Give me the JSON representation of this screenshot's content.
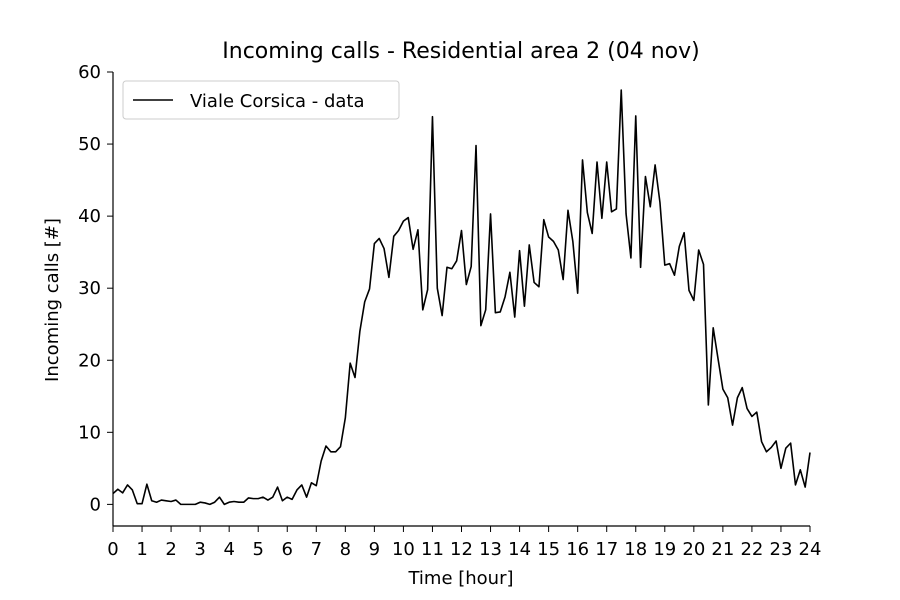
{
  "chart_data": {
    "type": "line",
    "title": "Incoming calls - Residential area 2 (04 nov)",
    "xlabel": "Time [hour]",
    "ylabel": "Incoming calls [#]",
    "xlim": [
      0,
      24
    ],
    "ylim": [
      -3,
      60
    ],
    "xticks": [
      "0",
      "1",
      "2",
      "3",
      "4",
      "5",
      "6",
      "7",
      "8",
      "9",
      "10",
      "11",
      "12",
      "13",
      "14",
      "15",
      "16",
      "17",
      "18",
      "19",
      "20",
      "21",
      "22",
      "23",
      "24"
    ],
    "yticks": [
      "0",
      "10",
      "20",
      "30",
      "40",
      "50",
      "60"
    ],
    "grid": false,
    "legend": {
      "position": "top-left",
      "entries": [
        "Viale Corsica - data"
      ]
    },
    "series": [
      {
        "name": "Viale Corsica - data",
        "color": "#000000",
        "x": [
          0,
          0.1667,
          0.3333,
          0.5,
          0.6667,
          0.8333,
          1,
          1.1667,
          1.3333,
          1.5,
          1.6667,
          1.8333,
          2,
          2.1667,
          2.3333,
          2.5,
          2.6667,
          2.8333,
          3,
          3.1667,
          3.3333,
          3.5,
          3.6667,
          3.8333,
          4,
          4.1667,
          4.3333,
          4.5,
          4.6667,
          4.8333,
          5,
          5.1667,
          5.3333,
          5.5,
          5.6667,
          5.8333,
          6,
          6.1667,
          6.3333,
          6.5,
          6.6667,
          6.8333,
          7,
          7.1667,
          7.3333,
          7.5,
          7.6667,
          7.8333,
          8,
          8.1667,
          8.3333,
          8.5,
          8.6667,
          8.8333,
          9,
          9.1667,
          9.3333,
          9.5,
          9.6667,
          9.8333,
          10,
          10.1667,
          10.3333,
          10.5,
          10.6667,
          10.8333,
          11,
          11.1667,
          11.3333,
          11.5,
          11.6667,
          11.8333,
          12,
          12.1667,
          12.3333,
          12.5,
          12.6667,
          12.8333,
          13,
          13.1667,
          13.3333,
          13.5,
          13.6667,
          13.8333,
          14,
          14.1667,
          14.3333,
          14.5,
          14.6667,
          14.8333,
          15,
          15.1667,
          15.3333,
          15.5,
          15.6667,
          15.8333,
          16,
          16.1667,
          16.3333,
          16.5,
          16.6667,
          16.8333,
          17,
          17.1667,
          17.3333,
          17.5,
          17.6667,
          17.8333,
          18,
          18.1667,
          18.3333,
          18.5,
          18.6667,
          18.8333,
          19,
          19.1667,
          19.3333,
          19.5,
          19.6667,
          19.8333,
          20,
          20.1667,
          20.3333,
          20.5,
          20.6667,
          20.8333,
          21,
          21.1667,
          21.3333,
          21.5,
          21.6667,
          21.8333,
          22,
          22.1667,
          22.3333,
          22.5,
          22.6667,
          22.8333,
          23,
          23.1667,
          23.3333,
          23.5,
          23.6667,
          23.8333,
          24
        ],
        "values": [
          1.5,
          2.1,
          1.6,
          2.7,
          2.0,
          0.1,
          0.1,
          2.8,
          0.5,
          0.3,
          0.6,
          0.5,
          0.4,
          0.6,
          0.0,
          0.0,
          0.0,
          0.0,
          0.3,
          0.2,
          0.0,
          0.3,
          1.0,
          0.0,
          0.3,
          0.4,
          0.3,
          0.3,
          0.9,
          0.8,
          0.8,
          1.0,
          0.6,
          1.0,
          2.4,
          0.5,
          1.0,
          0.7,
          2.0,
          2.7,
          1.0,
          3.0,
          2.6,
          6.0,
          8.1,
          7.3,
          7.3,
          8.0,
          12.0,
          19.6,
          17.6,
          24.0,
          28.1,
          29.9,
          36.2,
          36.9,
          35.5,
          31.5,
          37.2,
          38.0,
          39.3,
          39.8,
          35.4,
          38.1,
          27.0,
          29.8,
          53.8,
          30.0,
          26.2,
          32.9,
          32.7,
          33.8,
          38.0,
          30.5,
          33.0,
          49.8,
          24.8,
          27.0,
          40.3,
          26.6,
          26.7,
          28.8,
          32.2,
          26.0,
          35.2,
          27.5,
          36.0,
          30.8,
          30.2,
          39.5,
          37.1,
          36.5,
          35.3,
          31.2,
          40.8,
          36.5,
          29.3,
          47.8,
          40.5,
          37.6,
          47.5,
          39.7,
          47.5,
          40.6,
          41.0,
          57.5,
          40.3,
          34.2,
          53.9,
          32.9,
          45.5,
          41.3,
          47.1,
          41.9,
          33.2,
          33.4,
          31.8,
          35.8,
          37.7,
          29.7,
          28.3,
          35.3,
          33.3,
          13.8,
          24.5,
          20.2,
          16.0,
          14.8,
          11.0,
          14.8,
          16.2,
          13.3,
          12.2,
          12.8,
          8.7,
          7.3,
          7.9,
          8.8,
          5.0,
          7.8,
          8.5,
          2.7,
          4.8,
          2.4,
          7.2
        ]
      }
    ]
  }
}
